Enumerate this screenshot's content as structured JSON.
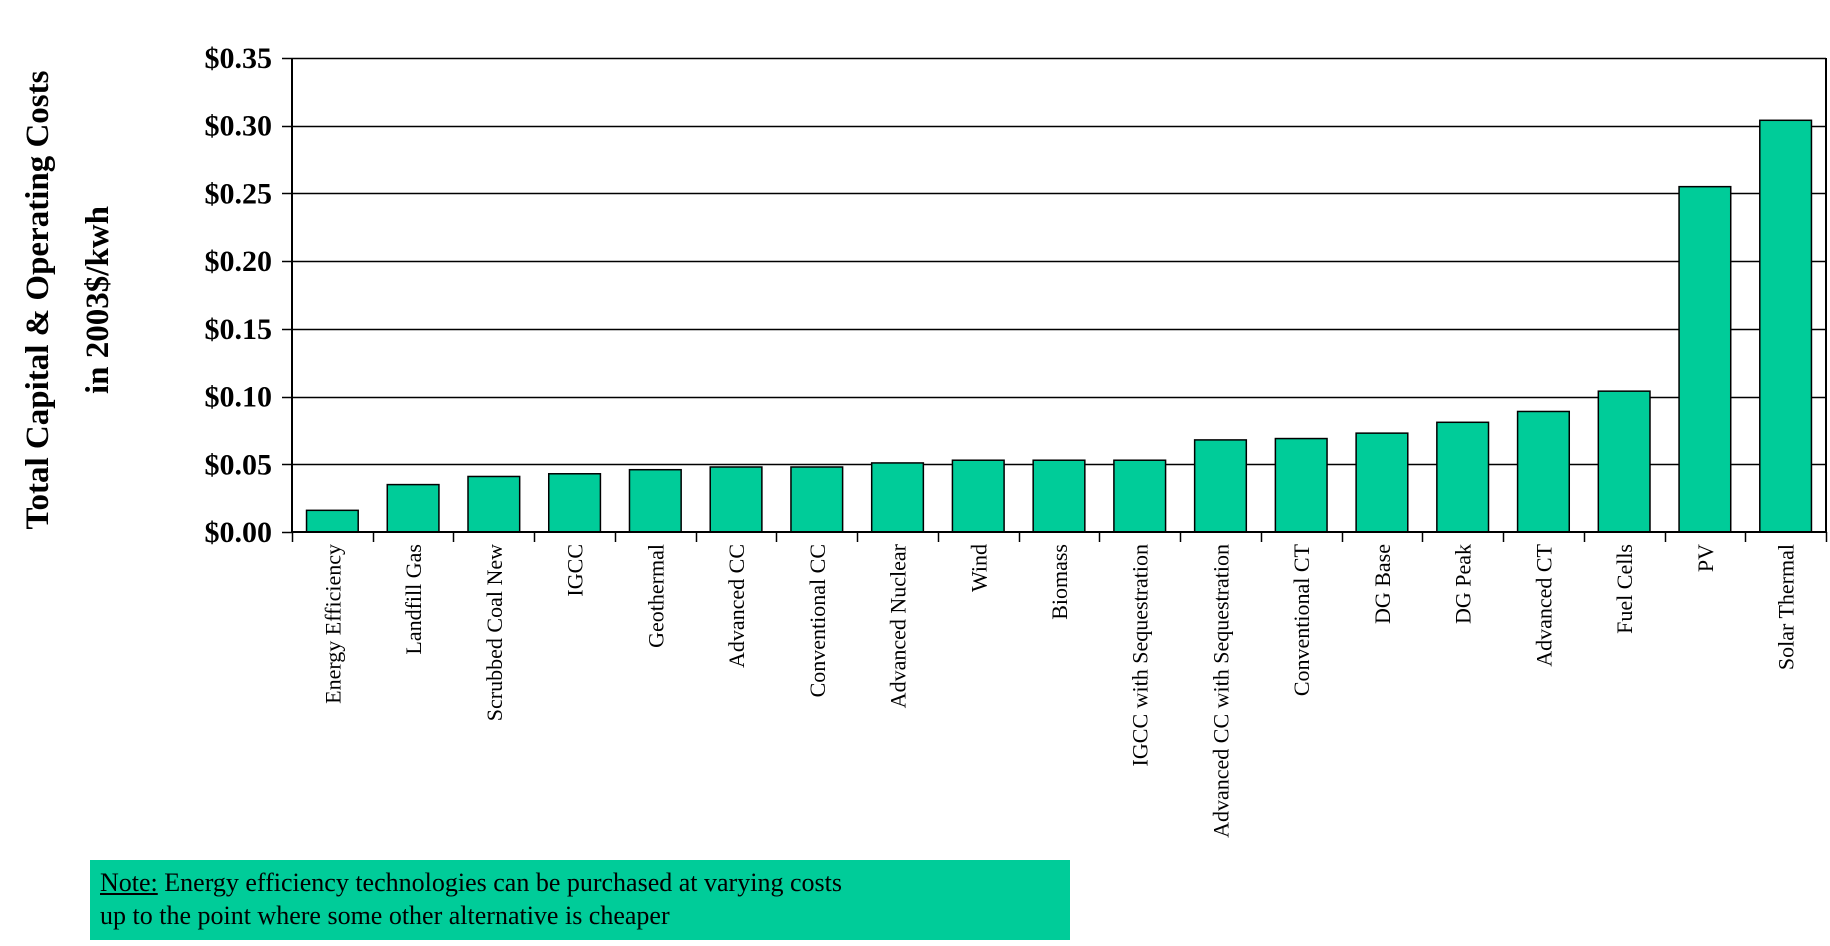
{
  "colors": {
    "bar_fill": "#00CC99",
    "bar_stroke": "#000000",
    "grid": "#000000",
    "note_background": "#00CC99"
  },
  "chart_data": {
    "type": "bar",
    "ylabel_lines": [
      "Total Capital & Operating Costs",
      "in 2003$/kwh"
    ],
    "ylim": [
      0,
      0.35
    ],
    "yticks": [
      0,
      0.05,
      0.1,
      0.15,
      0.2,
      0.25,
      0.3,
      0.35
    ],
    "ytick_labels": [
      "$0.00",
      "$0.05",
      "$0.10",
      "$0.15",
      "$0.20",
      "$0.25",
      "$0.30",
      "$0.35"
    ],
    "grid": "horizontal",
    "categories": [
      "Energy Efficiency",
      "Landfill Gas",
      "Scrubbed Coal New",
      "IGCC",
      "Geothermal",
      "Advanced CC",
      "Conventional CC",
      "Advanced Nuclear",
      "Wind",
      "Biomass",
      "IGCC with Sequestration",
      "Advanced CC with Sequestration",
      "Conventional CT",
      "DG Base",
      "DG Peak",
      "Advanced CT",
      "Fuel Cells",
      "PV",
      "Solar Thermal"
    ],
    "values": [
      0.016,
      0.035,
      0.041,
      0.043,
      0.046,
      0.048,
      0.048,
      0.051,
      0.053,
      0.053,
      0.053,
      0.068,
      0.069,
      0.073,
      0.081,
      0.089,
      0.104,
      0.255,
      0.304
    ]
  },
  "note": {
    "lead": "Note:",
    "line1": "Energy efficiency technologies can be purchased at varying costs",
    "line2": "up to the point where some other alternative is cheaper"
  }
}
